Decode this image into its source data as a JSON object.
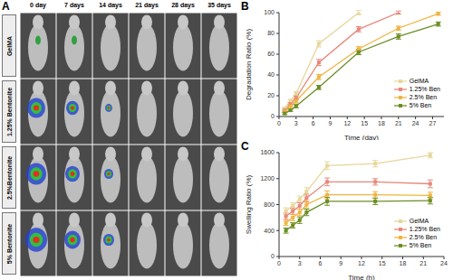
{
  "panel_a": {
    "label": "A",
    "columns": [
      "0 day",
      "7 days",
      "14 days",
      "21 days",
      "28 days",
      "35 days"
    ],
    "rows": [
      "GelMA",
      "1.25% Bentonite",
      "2.5%Bentonite",
      "5% Bentonite"
    ]
  },
  "chart_data": [
    {
      "type": "line",
      "title": "B",
      "x_label": "Time (day)",
      "y_label": "Degradation Ratio (%)",
      "x": [
        1,
        2,
        3,
        7,
        14,
        21,
        28
      ],
      "xlim": [
        0,
        29
      ],
      "xticks": [
        0,
        3,
        6,
        9,
        12,
        15,
        18,
        21,
        24,
        27
      ],
      "ylim": [
        0,
        100
      ],
      "yticks": [
        0,
        20,
        40,
        60,
        80,
        100
      ],
      "grid": false,
      "legend": "lower right",
      "marker": "square",
      "series": [
        {
          "name": "GelMA",
          "color": "#e6d79a",
          "values": [
            8,
            15,
            22,
            70,
            100,
            null,
            null
          ],
          "errors": [
            1,
            1.5,
            2,
            3,
            2,
            null,
            null
          ]
        },
        {
          "name": "1.25% Ben",
          "color": "#e8877a",
          "values": [
            6,
            12,
            18,
            52,
            84,
            100,
            null
          ],
          "errors": [
            1,
            1.5,
            2,
            3,
            2.5,
            1.5,
            null
          ]
        },
        {
          "name": "2.5% Ben",
          "color": "#f0b442",
          "values": [
            5,
            10,
            15,
            38,
            65,
            85,
            99
          ],
          "errors": [
            1,
            1.5,
            2,
            2.5,
            2.5,
            2,
            1.5
          ]
        },
        {
          "name": "5% Ben",
          "color": "#6b8e23",
          "values": [
            3,
            6,
            10,
            28,
            62,
            77,
            89
          ],
          "errors": [
            1,
            1,
            1.5,
            2,
            2.5,
            2.5,
            2
          ]
        }
      ]
    },
    {
      "type": "line",
      "title": "C",
      "x_label": "Time (h)",
      "y_label": "Swelling Ratio (%)",
      "x": [
        1,
        2,
        3,
        4,
        7,
        14,
        22
      ],
      "xlim": [
        0,
        24
      ],
      "xticks": [
        0,
        3,
        6,
        9,
        12,
        15,
        18,
        21,
        24
      ],
      "ylim": [
        0,
        1600
      ],
      "yticks": [
        0,
        400,
        800,
        1200,
        1600
      ],
      "grid": false,
      "legend": "lower right",
      "marker": "square",
      "series": [
        {
          "name": "GelMA",
          "color": "#e6d79a",
          "values": [
            700,
            780,
            880,
            1000,
            1400,
            1430,
            1560
          ],
          "errors": [
            50,
            50,
            50,
            60,
            60,
            50,
            40
          ]
        },
        {
          "name": "1.25% Ben",
          "color": "#e8877a",
          "values": [
            620,
            700,
            780,
            900,
            1150,
            1150,
            1120
          ],
          "errors": [
            50,
            50,
            50,
            60,
            60,
            50,
            60
          ]
        },
        {
          "name": "2.5% Ben",
          "color": "#f0b442",
          "values": [
            520,
            600,
            680,
            800,
            950,
            950,
            940
          ],
          "errors": [
            40,
            50,
            50,
            50,
            60,
            50,
            50
          ]
        },
        {
          "name": "5% Ben",
          "color": "#6b8e23",
          "values": [
            400,
            480,
            560,
            680,
            850,
            850,
            860
          ],
          "errors": [
            40,
            40,
            50,
            50,
            60,
            50,
            50
          ]
        }
      ]
    }
  ]
}
